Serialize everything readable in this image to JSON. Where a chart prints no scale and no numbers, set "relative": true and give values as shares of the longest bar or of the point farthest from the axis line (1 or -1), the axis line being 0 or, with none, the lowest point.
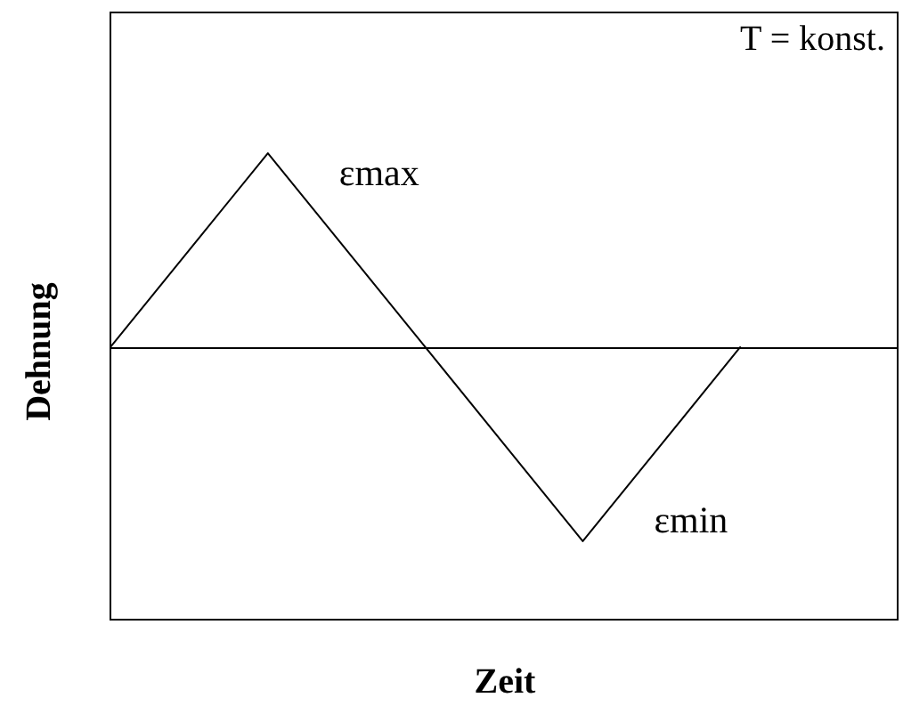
{
  "chart_data": {
    "type": "line",
    "relative": true,
    "xlabel": "Zeit",
    "ylabel": "Dehnung",
    "categories": [
      null,
      null,
      null,
      null,
      null,
      null
    ],
    "values": [
      0,
      1,
      0,
      -1,
      0,
      null
    ],
    "color": "#000000",
    "marker": "none",
    "annotations": [
      "T = konst.",
      "εmax",
      "εmin"
    ]
  }
}
